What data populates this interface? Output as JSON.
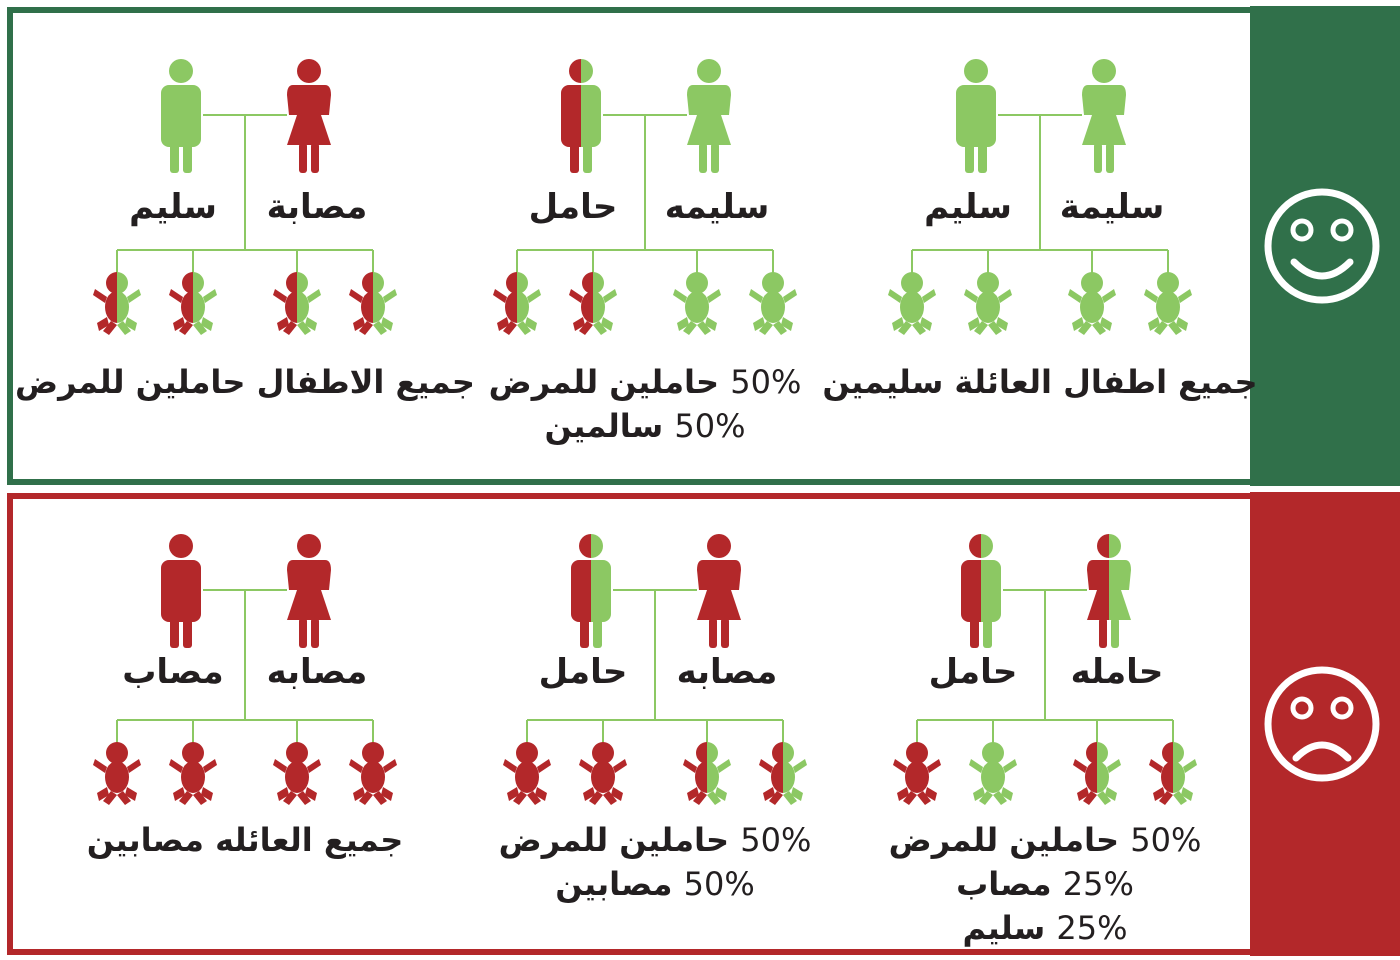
{
  "colors": {
    "healthy": "#8cc863",
    "affected": "#b3282a",
    "green_panel": "#30704a",
    "red_panel": "#b3282a",
    "line": "#8cc863",
    "text": "#231f20"
  },
  "panels": [
    {
      "id": "good",
      "icon": "smiley-face-icon",
      "scenarios": [
        {
          "parents": [
            {
              "label": "سليمة",
              "sex": "female",
              "status": "healthy"
            },
            {
              "label": "سليم",
              "sex": "male",
              "status": "healthy"
            }
          ],
          "children": [
            "healthy",
            "healthy",
            "healthy",
            "healthy"
          ],
          "result": [
            {
              "text": "جميع اطفال العائلة سليمين"
            }
          ]
        },
        {
          "parents": [
            {
              "label": "سليمه",
              "sex": "female",
              "status": "healthy"
            },
            {
              "label": "حامل",
              "sex": "male",
              "status": "carrier"
            }
          ],
          "children": [
            "healthy",
            "healthy",
            "carrier",
            "carrier"
          ],
          "result": [
            {
              "pct": "50%",
              "text": "حاملين للمرض"
            },
            {
              "pct": "50%",
              "text": "سالمين"
            }
          ]
        },
        {
          "parents": [
            {
              "label": "مصابة",
              "sex": "female",
              "status": "affected"
            },
            {
              "label": "سليم",
              "sex": "male",
              "status": "healthy"
            }
          ],
          "children": [
            "carrier",
            "carrier",
            "carrier",
            "carrier"
          ],
          "result": [
            {
              "text": "جميع الاطفال حاملين للمرض"
            }
          ]
        }
      ]
    },
    {
      "id": "bad",
      "icon": "sad-face-icon",
      "scenarios": [
        {
          "parents": [
            {
              "label": "حامله",
              "sex": "female",
              "status": "carrier"
            },
            {
              "label": "حامل",
              "sex": "male",
              "status": "carrier"
            }
          ],
          "children": [
            "carrier",
            "carrier",
            "healthy",
            "affected"
          ],
          "result": [
            {
              "pct": "50%",
              "text": "حاملين للمرض"
            },
            {
              "pct": "25%",
              "text": "مصاب"
            },
            {
              "pct": "25%",
              "text": "سليم"
            }
          ]
        },
        {
          "parents": [
            {
              "label": "مصابه",
              "sex": "female",
              "status": "affected"
            },
            {
              "label": "حامل",
              "sex": "male",
              "status": "carrier"
            }
          ],
          "children": [
            "carrier",
            "carrier",
            "affected",
            "affected"
          ],
          "result": [
            {
              "pct": "50%",
              "text": "حاملين للمرض"
            },
            {
              "pct": "50%",
              "text": "مصابين"
            }
          ]
        },
        {
          "parents": [
            {
              "label": "مصابه",
              "sex": "female",
              "status": "affected"
            },
            {
              "label": "مصاب",
              "sex": "male",
              "status": "affected"
            }
          ],
          "children": [
            "affected",
            "affected",
            "affected",
            "affected"
          ],
          "result": [
            {
              "text": "جميع العائله مصابين"
            }
          ]
        }
      ]
    }
  ]
}
